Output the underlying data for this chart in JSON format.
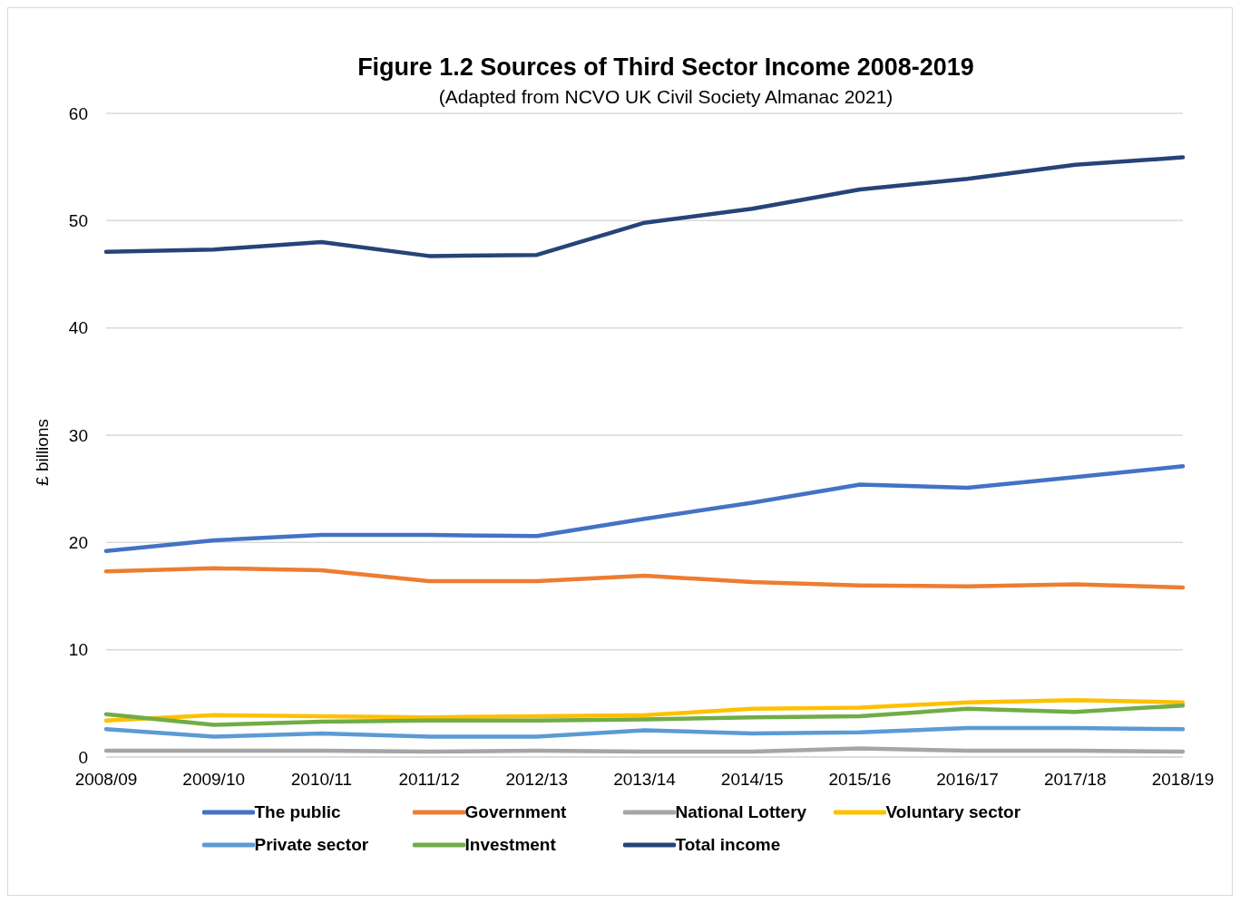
{
  "chart_data": {
    "type": "line",
    "title": "Figure 1.2  Sources of Third Sector Income 2008-2019",
    "subtitle": "(Adapted from NCVO UK Civil Society Almanac 2021)",
    "ylabel": "£ billions",
    "categories": [
      "2008/09",
      "2009/10",
      "2010/11",
      "2011/12",
      "2012/13",
      "2013/14",
      "2014/15",
      "2015/16",
      "2016/17",
      "2017/18",
      "2018/19"
    ],
    "ylim": [
      0,
      60
    ],
    "yticks": [
      0,
      10,
      20,
      30,
      40,
      50,
      60
    ],
    "grid": "y",
    "legend": "bottom",
    "marker": "none",
    "line_style": "solid",
    "series": [
      {
        "name": "The public",
        "color": "#4472c4",
        "values": [
          19.2,
          20.2,
          20.7,
          20.7,
          20.6,
          22.2,
          23.7,
          25.4,
          25.1,
          26.1,
          27.1
        ]
      },
      {
        "name": "Government",
        "color": "#ed7d31",
        "values": [
          17.3,
          17.6,
          17.4,
          16.4,
          16.4,
          16.9,
          16.3,
          16.0,
          15.9,
          16.1,
          15.8
        ]
      },
      {
        "name": "National Lottery",
        "color": "#a5a5a5",
        "values": [
          0.6,
          0.6,
          0.6,
          0.5,
          0.6,
          0.5,
          0.5,
          0.8,
          0.6,
          0.6,
          0.5
        ]
      },
      {
        "name": "Voluntary sector",
        "color": "#ffc000",
        "values": [
          3.4,
          3.9,
          3.8,
          3.7,
          3.8,
          3.9,
          4.5,
          4.6,
          5.1,
          5.3,
          5.1
        ]
      },
      {
        "name": "Private sector",
        "color": "#5b9bd5",
        "values": [
          2.6,
          1.9,
          2.2,
          1.9,
          1.9,
          2.5,
          2.2,
          2.3,
          2.7,
          2.7,
          2.6
        ]
      },
      {
        "name": "Investment",
        "color": "#70ad47",
        "values": [
          4.0,
          3.0,
          3.3,
          3.4,
          3.4,
          3.5,
          3.7,
          3.8,
          4.5,
          4.2,
          4.8
        ]
      },
      {
        "name": "Total income",
        "color": "#264478",
        "values": [
          47.1,
          47.3,
          48.0,
          46.7,
          46.8,
          49.8,
          51.1,
          52.9,
          53.9,
          55.2,
          55.9
        ]
      }
    ]
  }
}
